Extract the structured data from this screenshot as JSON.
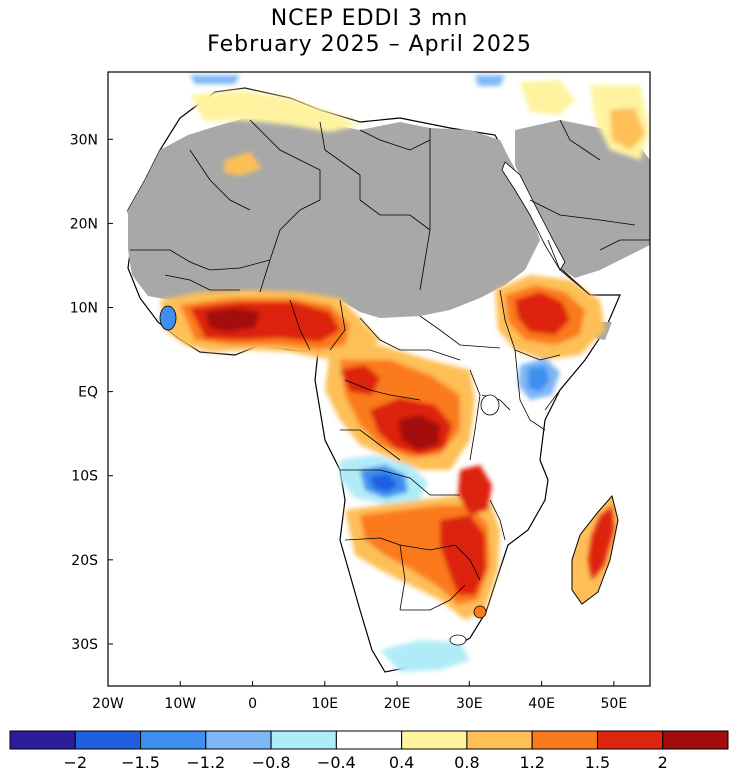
{
  "title": "NCEP EDDI 3 mn",
  "subtitle": "February 2025 – April 2025",
  "map": {
    "lon_range": [
      -20,
      55
    ],
    "lat_range": [
      -35,
      38
    ],
    "lat_ticks": [
      "30N",
      "20N",
      "10N",
      "EQ",
      "10S",
      "20S",
      "30S"
    ],
    "lon_ticks": [
      "20W",
      "10W",
      "0",
      "10E",
      "20E",
      "30E",
      "40E",
      "50E"
    ],
    "no_data_color": "#a8a8a8",
    "ocean_color": "#ffffff"
  },
  "colorbar": {
    "labels": [
      "−2",
      "−1.5",
      "−1.2",
      "−0.8",
      "−0.4",
      "0.4",
      "0.8",
      "1.2",
      "1.5",
      "2"
    ],
    "colors": [
      "#2b1e9a",
      "#1f5fe0",
      "#3d8ff0",
      "#7fb6f5",
      "#b0ecf7",
      "#ffffff",
      "#fff3a0",
      "#fdbf56",
      "#fb7a1e",
      "#dd2410",
      "#a30d0b"
    ]
  }
}
